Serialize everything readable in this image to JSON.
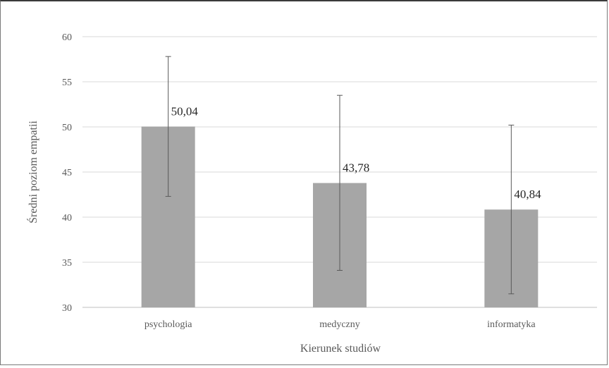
{
  "chart_data": {
    "type": "bar",
    "categories": [
      "psychologia",
      "medyczny",
      "informatyka"
    ],
    "values": [
      50.04,
      43.78,
      40.84
    ],
    "data_labels": [
      "50,04",
      "43,78",
      "40,84"
    ],
    "error_bars": [
      {
        "low": 42.3,
        "high": 57.8
      },
      {
        "low": 34.1,
        "high": 53.5
      },
      {
        "low": 31.5,
        "high": 50.2
      }
    ],
    "xlabel": "Kierunek studiów",
    "ylabel": "Średni poziom empatii",
    "ylim": [
      30,
      60
    ],
    "yticks": [
      30,
      35,
      40,
      45,
      50,
      55,
      60
    ],
    "grid": true,
    "bar_color": "#a6a6a6",
    "gridline_color": "#d9d9d9",
    "errorbar_color": "#595959"
  }
}
